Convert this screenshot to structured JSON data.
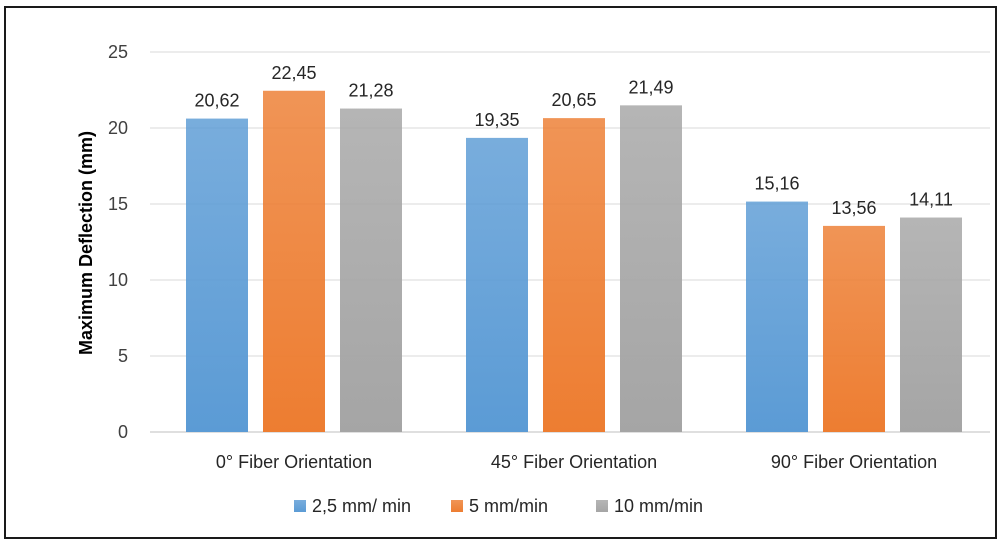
{
  "chart_data": {
    "type": "bar",
    "title": "",
    "xlabel": "",
    "ylabel": "Maximum Deflection (mm)",
    "ylim": [
      0,
      25
    ],
    "yticks": [
      "0",
      "5",
      "10",
      "15",
      "20",
      "25"
    ],
    "grid": true,
    "legend_position": "bottom",
    "categories": [
      "0° Fiber Orientation",
      "45° Fiber Orientation",
      "90° Fiber Orientation"
    ],
    "series": [
      {
        "name": "2,5 mm/ min",
        "color": "#5b9bd5",
        "values": [
          20.62,
          19.35,
          15.16
        ],
        "labels": [
          "20,62",
          "19,35",
          "15,16"
        ]
      },
      {
        "name": "5 mm/min",
        "color": "#ed7d31",
        "values": [
          22.45,
          20.65,
          13.56
        ],
        "labels": [
          "22,45",
          "20,65",
          "13,56"
        ]
      },
      {
        "name": "10 mm/min",
        "color": "#a5a5a5",
        "values": [
          21.28,
          21.49,
          14.11
        ],
        "labels": [
          "21,28",
          "21,49",
          "14,11"
        ]
      }
    ]
  }
}
